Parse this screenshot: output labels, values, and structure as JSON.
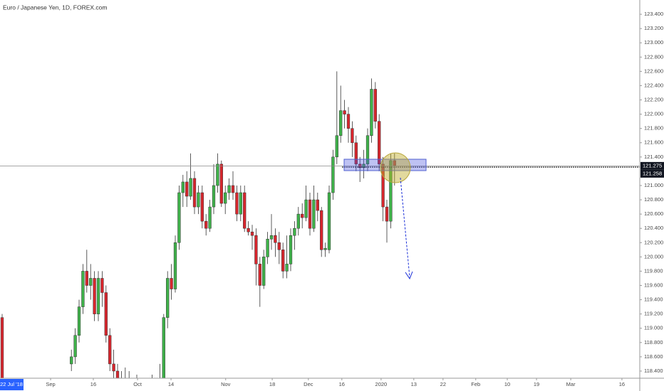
{
  "chart_data": {
    "type": "candlestick",
    "title": "Euro / Japanese Yen, 1D, FOREX.com",
    "up_color": "#3fb24a",
    "down_color": "#d8262d",
    "ylim": [
      118.3,
      123.6
    ],
    "xlim": [
      -0.556,
      165.74
    ],
    "yticks": [
      {
        "value": 123.4,
        "label": "123.400"
      },
      {
        "value": 123.2,
        "label": "123.200"
      },
      {
        "value": 123.0,
        "label": "123.000"
      },
      {
        "value": 122.8,
        "label": "122.800"
      },
      {
        "value": 122.6,
        "label": "122.600"
      },
      {
        "value": 122.4,
        "label": "122.400"
      },
      {
        "value": 122.2,
        "label": "122.200"
      },
      {
        "value": 122.0,
        "label": "122.000"
      },
      {
        "value": 121.8,
        "label": "121.800"
      },
      {
        "value": 121.6,
        "label": "121.600"
      },
      {
        "value": 121.4,
        "label": "121.400"
      },
      {
        "value": 121.0,
        "label": "121.000"
      },
      {
        "value": 120.8,
        "label": "120.800"
      },
      {
        "value": 120.6,
        "label": "120.600"
      },
      {
        "value": 120.4,
        "label": "120.400"
      },
      {
        "value": 120.2,
        "label": "120.200"
      },
      {
        "value": 120.0,
        "label": "120.000"
      },
      {
        "value": 119.8,
        "label": "119.800"
      },
      {
        "value": 119.6,
        "label": "119.600"
      },
      {
        "value": 119.4,
        "label": "119.400"
      },
      {
        "value": 119.2,
        "label": "119.200"
      },
      {
        "value": 119.0,
        "label": "119.000"
      },
      {
        "value": 118.8,
        "label": "118.800"
      },
      {
        "value": 118.6,
        "label": "118.600"
      },
      {
        "value": 118.4,
        "label": "118.400"
      }
    ],
    "xticks": [
      {
        "value": 12.6,
        "label": "Sep"
      },
      {
        "value": 23.7,
        "label": "16"
      },
      {
        "value": 35.2,
        "label": "Oct"
      },
      {
        "value": 43.9,
        "label": "14"
      },
      {
        "value": 58.1,
        "label": "Nov"
      },
      {
        "value": 70.2,
        "label": "18"
      },
      {
        "value": 79.6,
        "label": "Dec"
      },
      {
        "value": 88.3,
        "label": "16"
      },
      {
        "value": 98.5,
        "label": "2020"
      },
      {
        "value": 107,
        "label": "13"
      },
      {
        "value": 114.6,
        "label": "22"
      },
      {
        "value": 123.1,
        "label": "Feb"
      },
      {
        "value": 131.3,
        "label": "10"
      },
      {
        "value": 138.9,
        "label": "19"
      },
      {
        "value": 147.8,
        "label": "Mar"
      },
      {
        "value": 161.1,
        "label": "16"
      }
    ],
    "cursor_label": "22 Jul '18",
    "price_lines": [
      {
        "value": 121.275,
        "label": "121.275"
      },
      {
        "value": 121.258,
        "label": "121.258"
      }
    ],
    "x": [
      0,
      18,
      19,
      20,
      21,
      22,
      23,
      24,
      25,
      26,
      27,
      28,
      29,
      30,
      31,
      32,
      33,
      34,
      35,
      36,
      37,
      38,
      39,
      40,
      41,
      42,
      43,
      44,
      45,
      46,
      47,
      48,
      49,
      50,
      51,
      52,
      53,
      54,
      55,
      56,
      57,
      58,
      59,
      60,
      61,
      62,
      63,
      64,
      65,
      66,
      67,
      68,
      69,
      70,
      71,
      72,
      73,
      74,
      75,
      76,
      77,
      78,
      79,
      80,
      81,
      82,
      83,
      84,
      85,
      86,
      87,
      88,
      89,
      90,
      91,
      92,
      93,
      94,
      95,
      96,
      97,
      98,
      99,
      100,
      101,
      102
    ],
    "open": [
      119.15,
      118.5,
      118.6,
      118.9,
      119.3,
      119.8,
      119.6,
      119.7,
      119.2,
      119.7,
      119.5,
      118.9,
      118.5,
      118.4,
      118.25,
      118.2,
      118.3,
      118.15,
      118.1,
      118.2,
      118.05,
      118.1,
      118.2,
      118.1,
      118.25,
      118.3,
      119.15,
      119.7,
      119.55,
      120.2,
      120.9,
      121.05,
      120.85,
      121.1,
      120.7,
      120.9,
      120.5,
      120.4,
      120.7,
      121.0,
      121.3,
      120.75,
      120.9,
      121.0,
      120.9,
      120.6,
      120.9,
      120.4,
      120.35,
      120.3,
      119.9,
      119.6,
      120.0,
      120.25,
      120.3,
      120.2,
      120.1,
      119.8,
      119.9,
      120.3,
      120.4,
      120.6,
      120.55,
      120.8,
      120.4,
      120.8,
      120.65,
      120.1,
      120.1,
      120.9,
      121.4,
      121.7,
      122.05,
      122.0,
      121.8,
      121.6,
      121.3,
      121.25,
      121.3,
      121.7,
      122.35,
      121.9,
      121.3,
      120.7,
      120.5,
      121.35
    ],
    "high": [
      119.2,
      118.7,
      119.0,
      119.4,
      119.9,
      120.1,
      119.9,
      119.8,
      119.8,
      119.8,
      119.6,
      119.0,
      118.7,
      118.5,
      118.4,
      118.45,
      118.4,
      118.3,
      118.35,
      118.3,
      118.2,
      118.3,
      118.35,
      118.3,
      118.5,
      119.2,
      119.8,
      119.9,
      120.3,
      121.0,
      121.15,
      121.2,
      121.45,
      121.2,
      121.0,
      121.0,
      120.6,
      120.8,
      121.3,
      121.45,
      121.35,
      121.0,
      121.1,
      121.2,
      121.0,
      121.0,
      121.0,
      120.5,
      120.45,
      120.4,
      120.0,
      120.1,
      120.35,
      120.6,
      120.4,
      120.35,
      120.2,
      120.3,
      120.4,
      120.5,
      120.7,
      120.75,
      121.0,
      120.9,
      121.0,
      120.9,
      120.7,
      120.2,
      121.0,
      121.5,
      122.6,
      122.4,
      122.2,
      122.1,
      121.9,
      121.7,
      121.4,
      121.5,
      121.8,
      122.5,
      122.45,
      122.0,
      121.4,
      120.8,
      121.45,
      121.45
    ],
    "low": [
      118.2,
      118.4,
      118.5,
      118.8,
      119.2,
      119.5,
      119.4,
      119.1,
      119.1,
      119.3,
      118.8,
      118.4,
      118.3,
      118.2,
      118.1,
      118.1,
      118.1,
      118.0,
      118.0,
      118.0,
      117.9,
      118.0,
      118.0,
      118.0,
      118.1,
      118.2,
      119.0,
      119.4,
      119.5,
      120.1,
      120.7,
      120.7,
      120.8,
      120.6,
      120.6,
      120.4,
      120.3,
      120.35,
      120.6,
      120.9,
      120.7,
      120.6,
      120.8,
      120.8,
      120.5,
      120.5,
      120.35,
      120.3,
      120.1,
      119.6,
      119.3,
      119.55,
      119.9,
      120.1,
      120.0,
      119.9,
      119.7,
      119.7,
      119.8,
      120.1,
      120.3,
      120.4,
      120.5,
      120.3,
      120.35,
      120.5,
      120.0,
      120.0,
      120.05,
      120.8,
      121.3,
      121.6,
      121.8,
      121.6,
      121.4,
      121.2,
      121.05,
      121.1,
      121.2,
      121.6,
      121.8,
      121.2,
      120.5,
      120.2,
      120.4,
      121.0
    ],
    "close": [
      118.25,
      118.6,
      118.9,
      119.3,
      119.8,
      119.6,
      119.7,
      119.2,
      119.7,
      119.5,
      118.9,
      118.5,
      118.4,
      118.25,
      118.2,
      118.3,
      118.15,
      118.1,
      118.2,
      118.05,
      118.1,
      118.2,
      118.1,
      118.25,
      118.3,
      119.15,
      119.7,
      119.55,
      120.2,
      120.9,
      121.05,
      120.85,
      121.1,
      120.7,
      120.9,
      120.5,
      120.4,
      120.7,
      121.0,
      121.3,
      120.75,
      120.9,
      121.0,
      120.9,
      120.6,
      120.9,
      120.4,
      120.35,
      120.3,
      119.9,
      119.6,
      120.0,
      120.25,
      120.3,
      120.2,
      120.1,
      119.8,
      119.9,
      120.3,
      120.4,
      120.6,
      120.55,
      120.8,
      120.4,
      120.8,
      120.65,
      120.1,
      120.12,
      120.9,
      121.4,
      121.7,
      122.05,
      122.0,
      121.8,
      121.6,
      121.3,
      121.25,
      121.3,
      121.7,
      122.35,
      121.9,
      121.3,
      120.7,
      120.5,
      121.35,
      121.28
    ]
  }
}
